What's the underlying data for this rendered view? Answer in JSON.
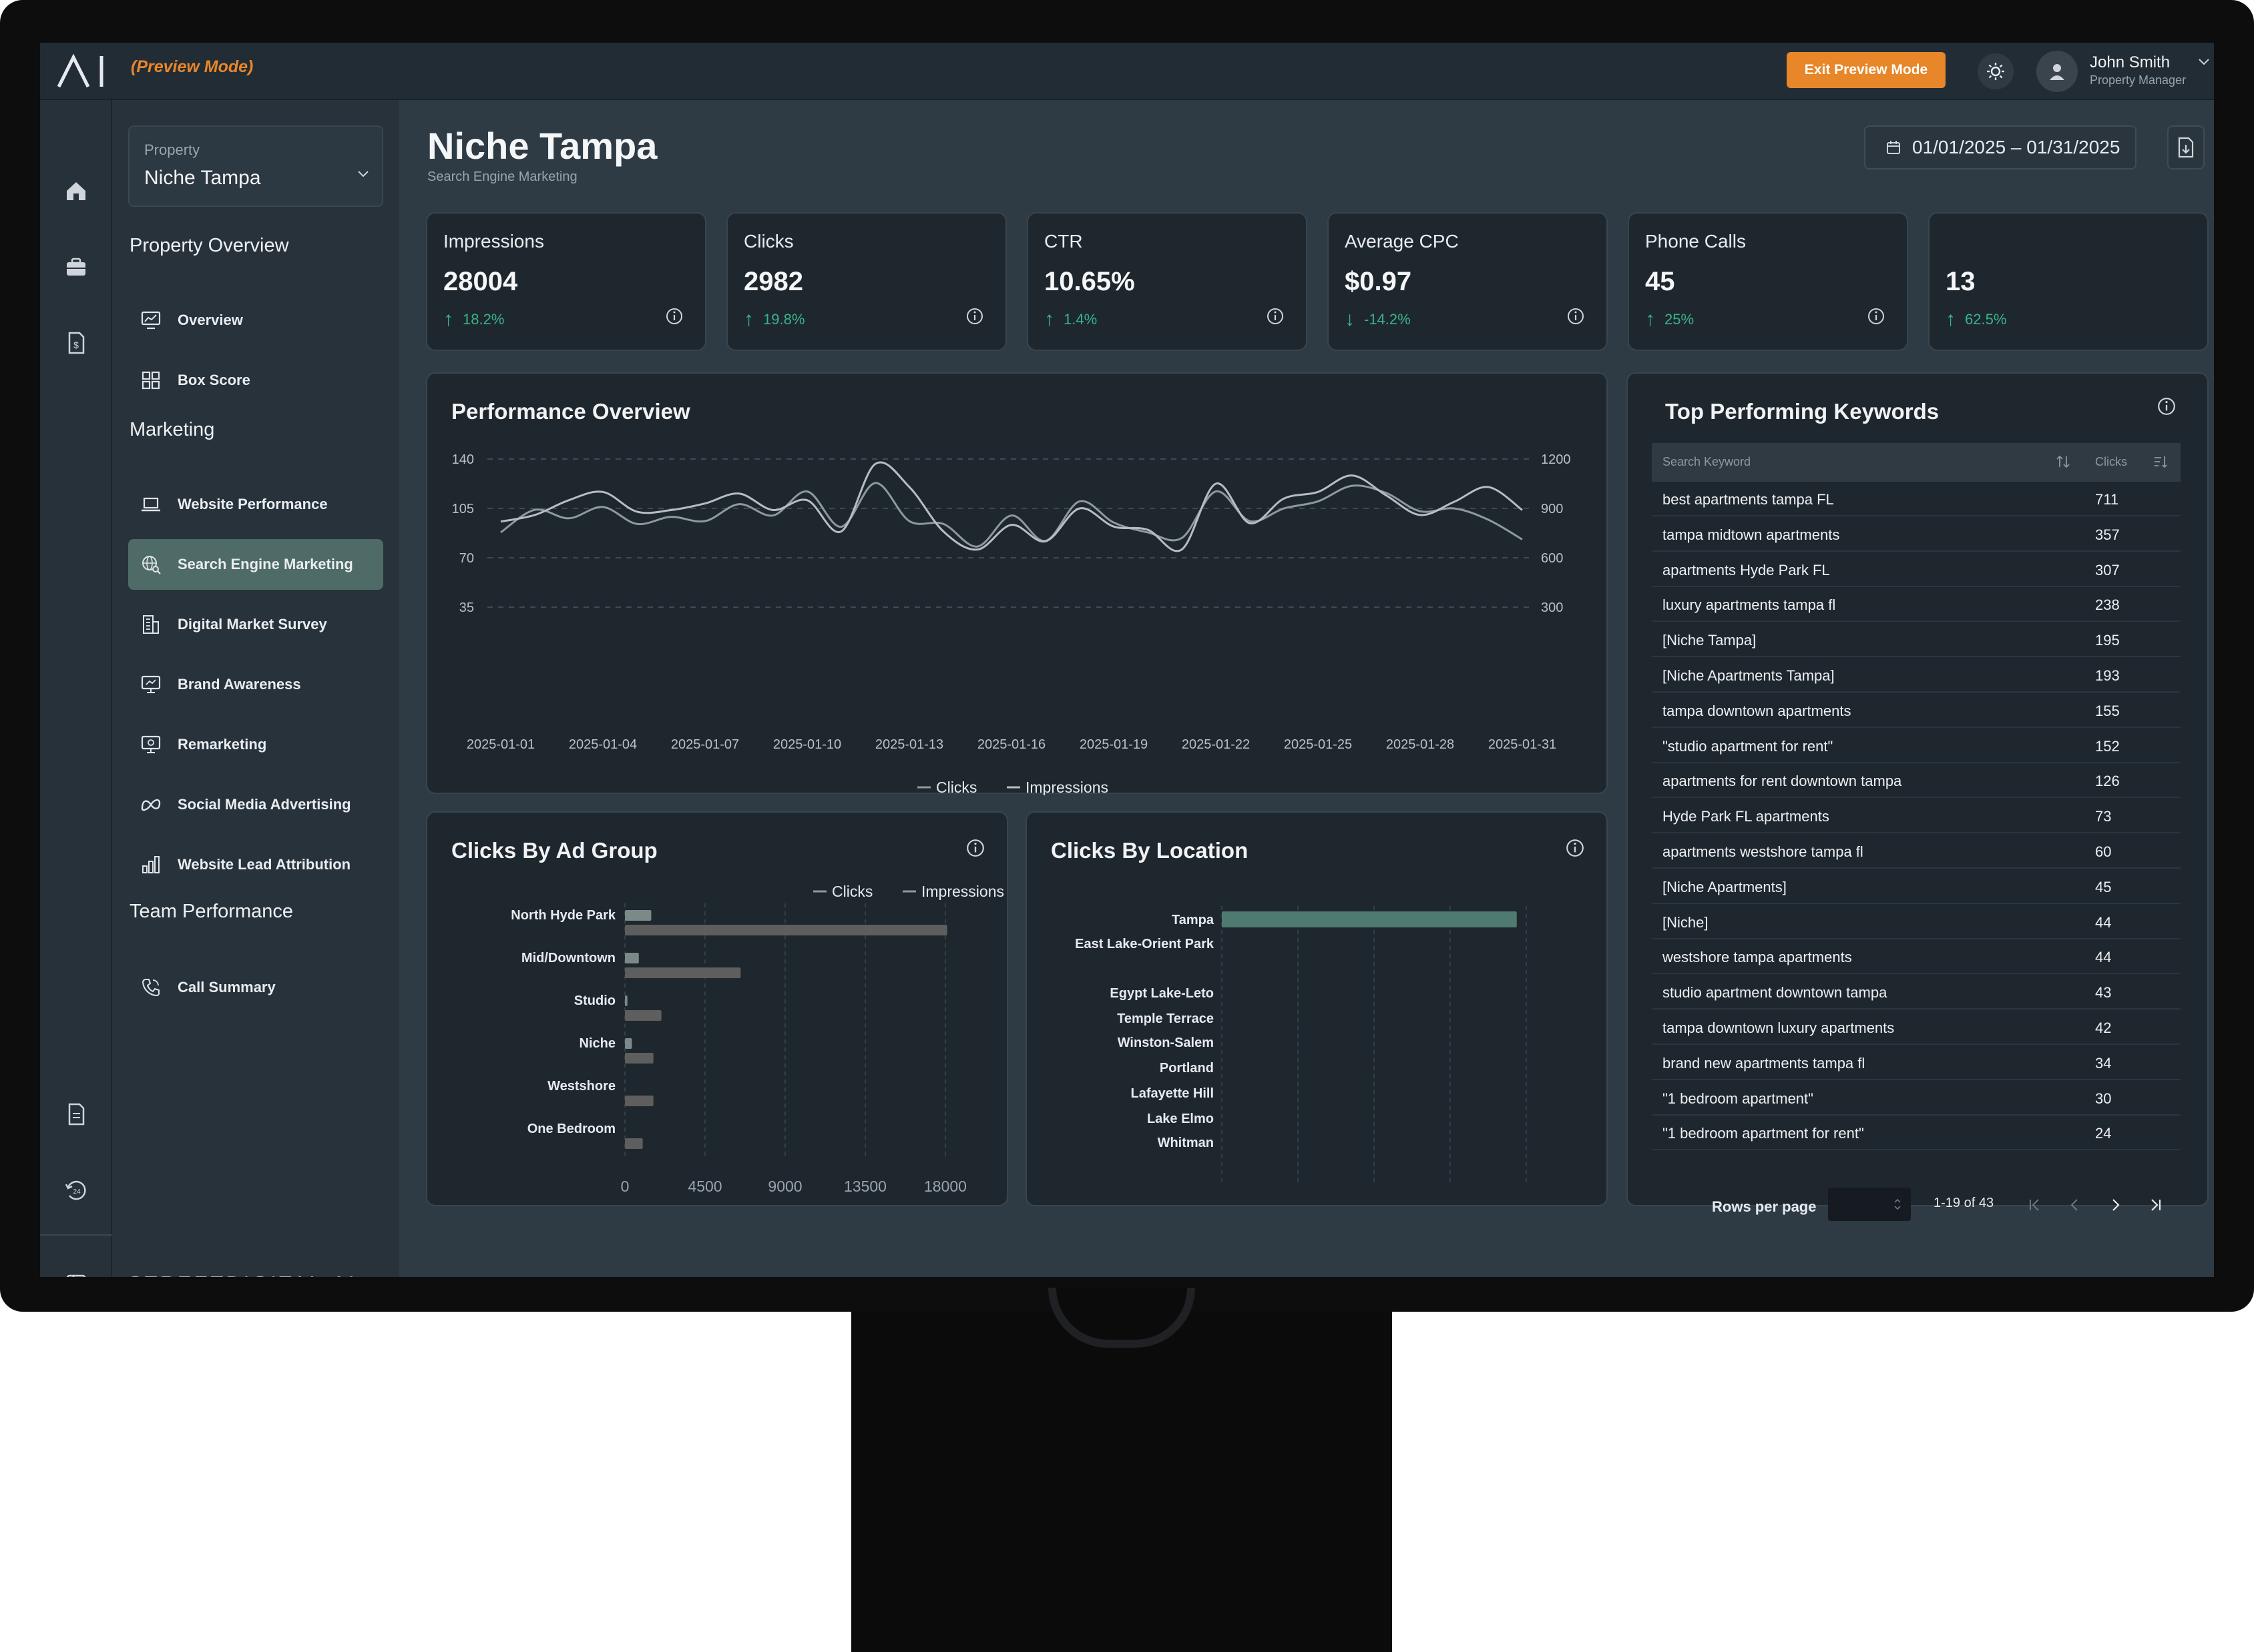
{
  "app": {
    "preview_mode": "(Preview Mode)",
    "exit_button": "Exit Preview Mode",
    "user_name": "John Smith",
    "user_role": "Property Manager",
    "brand_footer": "STREETDIGITAL.AI",
    "accent_color": "#e8862a",
    "positive_color": "#38b48a"
  },
  "sidebar": {
    "property_label": "Property",
    "property_value": "Niche Tampa",
    "sections": [
      {
        "title": "Property Overview",
        "items": [
          {
            "label": "Overview",
            "icon": "monitor-chart-icon"
          },
          {
            "label": "Box Score",
            "icon": "grid-icon"
          }
        ]
      },
      {
        "title": "Marketing",
        "items": [
          {
            "label": "Website Performance",
            "icon": "laptop-icon"
          },
          {
            "label": "Search Engine Marketing",
            "icon": "globe-search-icon",
            "active": true
          },
          {
            "label": "Digital Market Survey",
            "icon": "building-icon"
          },
          {
            "label": "Brand Awareness",
            "icon": "monitor-icon"
          },
          {
            "label": "Remarketing",
            "icon": "monitor-target-icon"
          },
          {
            "label": "Social Media Advertising",
            "icon": "meta-icon"
          },
          {
            "label": "Website Lead Attribution",
            "icon": "bar-chart-icon"
          }
        ]
      },
      {
        "title": "Team Performance",
        "items": [
          {
            "label": "Call Summary",
            "icon": "phone-icon"
          }
        ]
      }
    ]
  },
  "header": {
    "title": "Niche Tampa",
    "subtitle": "Search Engine Marketing",
    "date_range": "01/01/2025 – 01/31/2025"
  },
  "kpis": [
    {
      "title": "Impressions",
      "value": "28004",
      "delta": "18.2%",
      "direction": "up"
    },
    {
      "title": "Clicks",
      "value": "2982",
      "delta": "19.8%",
      "direction": "up"
    },
    {
      "title": "CTR",
      "value": "10.65%",
      "delta": "1.4%",
      "direction": "up"
    },
    {
      "title": "Average CPC",
      "value": "$0.97",
      "delta": "-14.2%",
      "direction": "down"
    },
    {
      "title": "Phone Calls",
      "value": "45",
      "delta": "25%",
      "direction": "up"
    },
    {
      "title": "",
      "value": "13",
      "delta": "62.5%",
      "direction": "up"
    }
  ],
  "performance": {
    "title": "Performance Overview"
  },
  "ad_group": {
    "title": "Clicks By Ad Group"
  },
  "location": {
    "title": "Clicks By Location"
  },
  "keywords": {
    "title": "Top Performing Keywords",
    "col_keyword": "Search Keyword",
    "col_clicks": "Clicks",
    "rows": [
      {
        "keyword": "best apartments tampa FL",
        "clicks": "711"
      },
      {
        "keyword": "tampa midtown apartments",
        "clicks": "357"
      },
      {
        "keyword": "apartments Hyde Park FL",
        "clicks": "307"
      },
      {
        "keyword": "luxury apartments tampa fl",
        "clicks": "238"
      },
      {
        "keyword": "[Niche Tampa]",
        "clicks": "195"
      },
      {
        "keyword": "[Niche Apartments Tampa]",
        "clicks": "193"
      },
      {
        "keyword": "tampa downtown apartments",
        "clicks": "155"
      },
      {
        "keyword": "\"studio apartment for rent\"",
        "clicks": "152"
      },
      {
        "keyword": "apartments for rent downtown tampa",
        "clicks": "126"
      },
      {
        "keyword": "Hyde Park FL apartments",
        "clicks": "73"
      },
      {
        "keyword": "apartments westshore tampa fl",
        "clicks": "60"
      },
      {
        "keyword": "[Niche Apartments]",
        "clicks": "45"
      },
      {
        "keyword": "[Niche]",
        "clicks": "44"
      },
      {
        "keyword": "westshore tampa apartments",
        "clicks": "44"
      },
      {
        "keyword": "studio apartment downtown tampa",
        "clicks": "43"
      },
      {
        "keyword": "tampa downtown luxury apartments",
        "clicks": "42"
      },
      {
        "keyword": "brand new apartments tampa fl",
        "clicks": "34"
      },
      {
        "keyword": "\"1 bedroom apartment\"",
        "clicks": "30"
      },
      {
        "keyword": "\"1 bedroom apartment for rent\"",
        "clicks": "24"
      }
    ],
    "rows_per_page_label": "Rows per page",
    "range": "1-19 of 43"
  },
  "chart_data": [
    {
      "type": "line",
      "title": "Performance Overview",
      "x": [
        "2025-01-01",
        "2025-01-02",
        "2025-01-03",
        "2025-01-04",
        "2025-01-05",
        "2025-01-06",
        "2025-01-07",
        "2025-01-08",
        "2025-01-09",
        "2025-01-10",
        "2025-01-11",
        "2025-01-12",
        "2025-01-13",
        "2025-01-14",
        "2025-01-15",
        "2025-01-16",
        "2025-01-17",
        "2025-01-18",
        "2025-01-19",
        "2025-01-20",
        "2025-01-21",
        "2025-01-22",
        "2025-01-23",
        "2025-01-24",
        "2025-01-25",
        "2025-01-26",
        "2025-01-27",
        "2025-01-28",
        "2025-01-29",
        "2025-01-30",
        "2025-01-31"
      ],
      "x_ticks": [
        "2025-01-01",
        "2025-01-04",
        "2025-01-07",
        "2025-01-10",
        "2025-01-13",
        "2025-01-16",
        "2025-01-19",
        "2025-01-22",
        "2025-01-25",
        "2025-01-28",
        "2025-01-31"
      ],
      "series": [
        {
          "name": "Clicks",
          "axis": "left",
          "values": [
            88,
            104,
            98,
            106,
            94,
            99,
            96,
            108,
            100,
            117,
            92,
            123,
            96,
            94,
            78,
            100,
            82,
            110,
            95,
            88,
            84,
            117,
            96,
            105,
            110,
            121,
            116,
            103,
            105,
            97,
            83
          ]
        },
        {
          "name": "Impressions",
          "axis": "right",
          "values": [
            820,
            860,
            950,
            1000,
            880,
            890,
            930,
            990,
            890,
            950,
            760,
            1170,
            1030,
            760,
            650,
            800,
            700,
            900,
            790,
            770,
            650,
            1050,
            810,
            960,
            1000,
            1100,
            980,
            860,
            940,
            1030,
            890
          ]
        }
      ],
      "y_left": {
        "ticks": [
          35,
          70,
          105,
          140
        ],
        "range": [
          0,
          140
        ]
      },
      "y_right": {
        "ticks": [
          300,
          600,
          900,
          1200
        ],
        "range": [
          0,
          1200
        ]
      },
      "legend": "bottom"
    },
    {
      "type": "bar",
      "orientation": "horizontal",
      "title": "Clicks By Ad Group",
      "categories": [
        "North Hyde Park",
        "Mid/Downtown",
        "Studio",
        "Niche",
        "Westshore",
        "One Bedroom"
      ],
      "series": [
        {
          "name": "Clicks",
          "values": [
            1480,
            780,
            140,
            390,
            0,
            0
          ]
        },
        {
          "name": "Impressions",
          "values": [
            18100,
            6500,
            2050,
            1600,
            1600,
            1000
          ]
        }
      ],
      "x_ticks": [
        0,
        4500,
        9000,
        13500,
        18000
      ],
      "legend": "top"
    },
    {
      "type": "bar",
      "orientation": "horizontal",
      "title": "Clicks By Location",
      "categories": [
        "Tampa",
        "East Lake-Orient Park",
        "Egypt Lake-Leto",
        "Temple Terrace",
        "Winston-Salem",
        "Portland",
        "Lafayette Hill",
        "Lake Elmo",
        "Whitman"
      ],
      "series": [
        {
          "name": "Clicks",
          "values": [
            3100,
            0,
            0,
            0,
            0,
            0,
            0,
            0,
            0
          ]
        }
      ],
      "x_ticks": [
        0,
        800,
        1600,
        2400,
        3200
      ]
    }
  ]
}
